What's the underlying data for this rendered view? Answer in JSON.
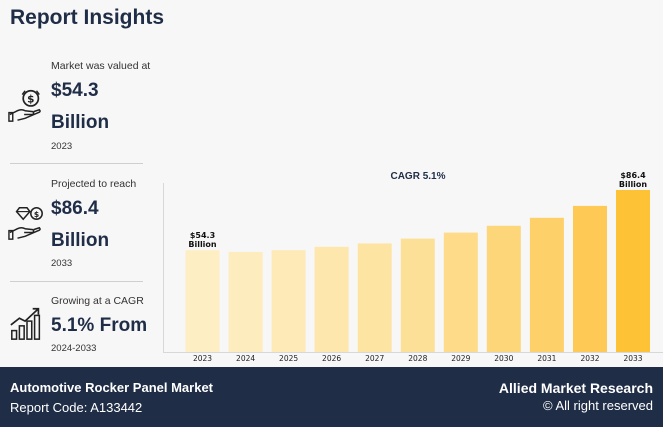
{
  "header": {
    "title": "Report Insights"
  },
  "stats": [
    {
      "label": "Market was valued at",
      "value_line1": "$54.3",
      "value_line2": "Billion",
      "sub": "2023",
      "icon": "money-hand-icon"
    },
    {
      "label": "Projected to reach",
      "value_line1": "$86.4",
      "value_line2": "Billion",
      "sub": "2033",
      "icon": "diamond-hand-icon"
    },
    {
      "label": "Growing at a CAGR",
      "value_line1": "5.1% From",
      "sub": "2024-2033",
      "icon": "growth-chart-icon"
    }
  ],
  "chart_data": {
    "type": "bar",
    "title": "CAGR 5.1%",
    "categories": [
      "2023",
      "2024",
      "2025",
      "2026",
      "2027",
      "2028",
      "2029",
      "2030",
      "2031",
      "2032",
      "2033"
    ],
    "values": [
      54.3,
      53.4,
      54.3,
      56.1,
      57.9,
      60.5,
      63.7,
      67.3,
      71.6,
      77.9,
      86.4
    ],
    "data_labels": [
      {
        "index": 0,
        "line1": "$54.3",
        "line2": "Billion"
      },
      {
        "index": 10,
        "line1": "$86.4",
        "line2": "Billion"
      }
    ],
    "ylim": [
      0,
      86.4
    ],
    "grid": false,
    "colors": [
      "#fdeec3",
      "#fdecbd",
      "#fdeab6",
      "#fde7ad",
      "#fde4a3",
      "#fde097",
      "#fedb89",
      "#fed67a",
      "#fed06a",
      "#fec955",
      "#fec236"
    ]
  },
  "footer": {
    "market_name": "Automotive Rocker Panel Market",
    "report_code": "Report Code: A133442",
    "brand": "Allied Market Research",
    "rights": "© All right reserved"
  }
}
